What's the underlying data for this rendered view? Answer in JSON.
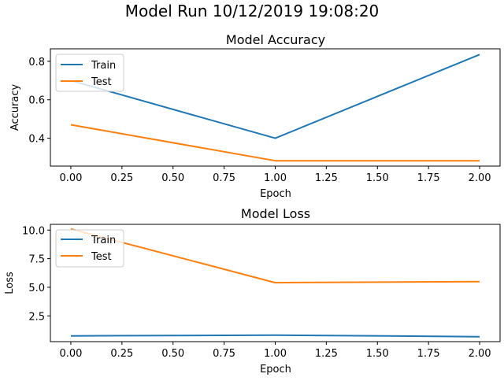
{
  "suptitle": "Model Run 10/12/2019 19:08:20",
  "colors": {
    "train": "#1f77b4",
    "test": "#ff7f0e"
  },
  "chart_data": [
    {
      "type": "line",
      "title": "Model Accuracy",
      "xlabel": "Epoch",
      "ylabel": "Accuracy",
      "x": [
        0,
        1,
        2
      ],
      "xlim": [
        -0.1,
        2.1
      ],
      "ylim": [
        0.255,
        0.865
      ],
      "xticks": [
        "0.00",
        "0.25",
        "0.50",
        "0.75",
        "1.00",
        "1.25",
        "1.50",
        "1.75",
        "2.00"
      ],
      "yticks": [
        "0.4",
        "0.6",
        "0.8"
      ],
      "grid": false,
      "legend_position": "upper-left",
      "series": [
        {
          "name": "Train",
          "values": [
            0.7,
            0.4,
            0.835
          ]
        },
        {
          "name": "Test",
          "values": [
            0.47,
            0.283,
            0.283
          ]
        }
      ]
    },
    {
      "type": "line",
      "title": "Model Loss",
      "xlabel": "Epoch",
      "ylabel": "Loss",
      "x": [
        0,
        1,
        2
      ],
      "xlim": [
        -0.1,
        2.1
      ],
      "ylim": [
        0.25,
        10.5
      ],
      "xticks": [
        "0.00",
        "0.25",
        "0.50",
        "0.75",
        "1.00",
        "1.25",
        "1.50",
        "1.75",
        "2.00"
      ],
      "yticks": [
        "2.5",
        "5.0",
        "7.5",
        "10.0"
      ],
      "grid": false,
      "legend_position": "upper-left",
      "series": [
        {
          "name": "Train",
          "values": [
            0.75,
            0.82,
            0.68
          ]
        },
        {
          "name": "Test",
          "values": [
            10.1,
            5.4,
            5.5
          ]
        }
      ]
    }
  ]
}
